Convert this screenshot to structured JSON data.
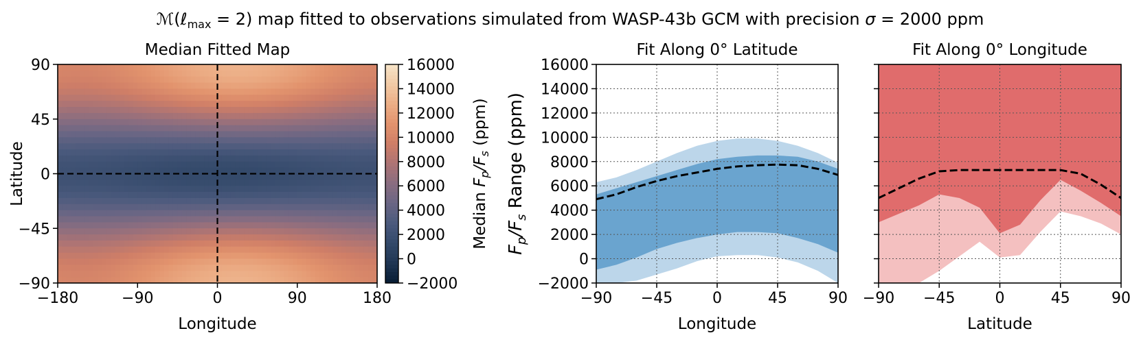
{
  "figure": {
    "title_prefix": "ℳ(ℓ",
    "title_sub": "max",
    "title_mid": " = 2) map fitted to observations simulated from WASP-43b GCM with precision ",
    "title_sigma": "σ",
    "title_suffix": " = 2000 ppm"
  },
  "colors": {
    "map_stops": [
      "#071c33",
      "#1f3552",
      "#33496a",
      "#4b5a7d",
      "#6a6684",
      "#8a6d80",
      "#ad7474",
      "#cf7e67",
      "#e2936d",
      "#ecae86",
      "#f2caa6",
      "#f6e4c8"
    ],
    "blue_inner": "#6aa4cf",
    "blue_outer": "#bcd6ea",
    "red_inner": "#e06c6c",
    "red_outer": "#f4c0c0",
    "median_line": "#000000"
  },
  "chart_data": [
    {
      "type": "heatmap",
      "title": "Median Fitted Map",
      "xlabel": "Longitude",
      "ylabel": "Latitude",
      "xlim": [
        -180,
        180
      ],
      "ylim": [
        -90,
        90
      ],
      "xticks": [
        "−180",
        "−90",
        "0",
        "90",
        "180"
      ],
      "yticks": [
        "−90",
        "−45",
        "0",
        "45",
        "90"
      ],
      "xtick_values": [
        -180,
        -90,
        0,
        90,
        180
      ],
      "ytick_values": [
        -90,
        -45,
        0,
        45,
        90
      ],
      "crosshair": {
        "longitude": 0,
        "latitude": 0
      },
      "field": {
        "min_value": 1000,
        "pole_value": 11500,
        "pole_hot_longitude": 20,
        "pole_hot_amplitude": 1500,
        "equator_value_min": 1300,
        "equator_value_max": 2000
      },
      "colorbar": {
        "label": "Median F_p/F_s (ppm)",
        "label_prefix": "Median ",
        "label_suffix": " (ppm)",
        "range": [
          -2000,
          16000
        ],
        "ticks": [
          "16000",
          "14000",
          "12000",
          "10000",
          "8000",
          "6000",
          "4000",
          "2000",
          "0",
          "−2000"
        ],
        "tick_values": [
          16000,
          14000,
          12000,
          10000,
          8000,
          6000,
          4000,
          2000,
          0,
          -2000
        ]
      }
    },
    {
      "type": "area",
      "title": "Fit Along 0° Latitude",
      "xlabel": "Longitude",
      "ylabel": "F_p/F_s Range (ppm)",
      "ylabel_suffix": " Range (ppm)",
      "xlim": [
        -90,
        90
      ],
      "ylim": [
        -2000,
        16000
      ],
      "xticks": [
        "−90",
        "−45",
        "0",
        "45",
        "90"
      ],
      "yticks": [
        "16000",
        "14000",
        "12000",
        "10000",
        "8000",
        "6000",
        "4000",
        "2000",
        "0",
        "−2000"
      ],
      "xtick_values": [
        -90,
        -45,
        0,
        45,
        90
      ],
      "ytick_values": [
        16000,
        14000,
        12000,
        10000,
        8000,
        6000,
        4000,
        2000,
        0,
        -2000
      ],
      "grid": true,
      "x": [
        -90,
        -75,
        -60,
        -45,
        -30,
        -15,
        0,
        15,
        30,
        45,
        60,
        75,
        90
      ],
      "median": [
        4900,
        5300,
        5900,
        6400,
        6800,
        7100,
        7400,
        7600,
        7700,
        7750,
        7700,
        7400,
        6900
      ],
      "inner_upper": [
        5300,
        5800,
        6300,
        6800,
        7300,
        7800,
        8200,
        8400,
        8500,
        8500,
        8400,
        8000,
        7400
      ],
      "inner_lower": [
        -900,
        -500,
        100,
        800,
        1300,
        1700,
        2000,
        2200,
        2200,
        2100,
        1700,
        1200,
        500
      ],
      "outer_upper": [
        6300,
        6700,
        7300,
        8000,
        8700,
        9300,
        9700,
        9900,
        9900,
        9700,
        9300,
        8700,
        7900
      ],
      "outer_lower": [
        -2000,
        -2000,
        -1800,
        -1300,
        -800,
        -200,
        200,
        300,
        300,
        100,
        -300,
        -1000,
        -2000
      ]
    },
    {
      "type": "area",
      "title": "Fit Along 0° Longitude",
      "xlabel": "Latitude",
      "xlim": [
        -90,
        90
      ],
      "ylim": [
        -2000,
        16000
      ],
      "xticks": [
        "−90",
        "−45",
        "0",
        "45",
        "90"
      ],
      "xtick_values": [
        -90,
        -45,
        0,
        45,
        90
      ],
      "grid": true,
      "x": [
        -90,
        -75,
        -60,
        -45,
        -30,
        -15,
        0,
        15,
        30,
        45,
        60,
        75,
        90
      ],
      "median": [
        5000,
        5800,
        6600,
        7200,
        7300,
        7300,
        7300,
        7300,
        7300,
        7300,
        7000,
        6100,
        5000
      ],
      "inner_upper": [
        16000,
        16000,
        16000,
        16000,
        16000,
        16000,
        16000,
        16000,
        16000,
        16000,
        16000,
        16000,
        16000
      ],
      "inner_lower": [
        3000,
        3700,
        4400,
        5300,
        5000,
        4200,
        2100,
        2800,
        4800,
        6500,
        5600,
        4600,
        3500
      ],
      "outer_upper": [
        16000,
        16000,
        16000,
        16000,
        11200,
        9000,
        8700,
        8700,
        9400,
        10000,
        16000,
        16000,
        16000
      ],
      "outer_lower": [
        -2000,
        -2000,
        -2000,
        -1000,
        200,
        1400,
        100,
        300,
        2200,
        3900,
        3500,
        2900,
        2000
      ]
    }
  ]
}
